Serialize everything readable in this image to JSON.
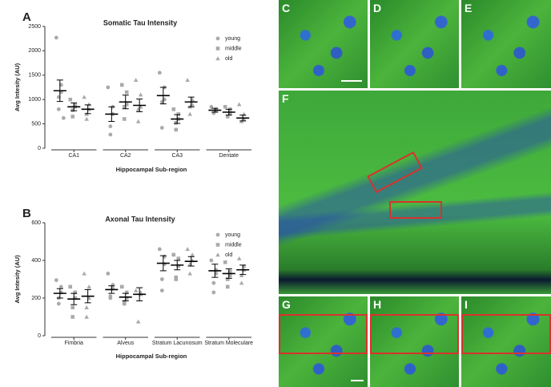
{
  "chart_data": [
    {
      "type": "dotplot",
      "panel_label": "A",
      "title": "Somatic Tau Intensity",
      "ylabel": "Avg Intesity (AU)",
      "xlabel": "Hippocampal Sub-region",
      "categories": [
        "CA1",
        "CA2",
        "CA3",
        "Dentate"
      ],
      "ylim": [
        0,
        2500
      ],
      "yticks": [
        0,
        500,
        1000,
        1500,
        2000,
        2500
      ],
      "series": [
        {
          "name": "young",
          "color": "#aaaaaa",
          "marker": "circle",
          "points": [
            [
              2270,
              1300,
              1150,
              1050,
              800,
              620
            ],
            [
              1250,
              850,
              700,
              450,
              280
            ],
            [
              1550,
              1250,
              1000,
              950,
              420
            ],
            [
              850,
              800,
              780,
              720
            ]
          ],
          "mean": [
            1180,
            700,
            1080,
            780
          ],
          "sem": [
            220,
            150,
            170,
            40
          ]
        },
        {
          "name": "middle",
          "color": "#aaaaaa",
          "marker": "square",
          "points": [
            [
              1000,
              880,
              850,
              780,
              650
            ],
            [
              1300,
              1150,
              900,
              850,
              600
            ],
            [
              800,
              700,
              600,
              520,
              380
            ],
            [
              850,
              800,
              720,
              650
            ]
          ],
          "mean": [
            850,
            950,
            600,
            740
          ],
          "sem": [
            80,
            140,
            90,
            60
          ]
        },
        {
          "name": "old",
          "color": "#aaaaaa",
          "marker": "triangle",
          "points": [
            [
              1050,
              900,
              800,
              700,
              600
            ],
            [
              1400,
              1100,
              850,
              800,
              550
            ],
            [
              1400,
              1000,
              900,
              850,
              700
            ],
            [
              900,
              700,
              600,
              550
            ]
          ],
          "mean": [
            800,
            880,
            950,
            620
          ],
          "sem": [
            90,
            130,
            100,
            60
          ]
        }
      ]
    },
    {
      "type": "dotplot",
      "panel_label": "B",
      "title": "Axonal Tau Intensity",
      "ylabel": "Avg Intesity (AU)",
      "xlabel": "Hippocampal Sub-region",
      "categories": [
        "Fimbria",
        "Alveus",
        "Stratum Lacunosum",
        "Stratum Moleculare"
      ],
      "ylim": [
        0,
        600
      ],
      "yticks": [
        0,
        200,
        400,
        600
      ],
      "series": [
        {
          "name": "young",
          "color": "#aaaaaa",
          "marker": "circle",
          "points": [
            [
              295,
              260,
              230,
              200,
              170
            ],
            [
              330,
              270,
              250,
              210,
              200
            ],
            [
              460,
              420,
              380,
              300,
              240
            ],
            [
              400,
              350,
              330,
              280,
              230
            ]
          ],
          "mean": [
            225,
            245,
            385,
            345
          ],
          "sem": [
            25,
            20,
            40,
            35
          ]
        },
        {
          "name": "middle",
          "color": "#aaaaaa",
          "marker": "square",
          "points": [
            [
              260,
              230,
              200,
              150,
              100
            ],
            [
              260,
              230,
              200,
              180,
              170
            ],
            [
              430,
              410,
              370,
              310,
              300
            ],
            [
              390,
              340,
              320,
              300,
              260
            ]
          ],
          "mean": [
            195,
            205,
            375,
            330
          ],
          "sem": [
            30,
            20,
            25,
            25
          ]
        },
        {
          "name": "old",
          "color": "#aaaaaa",
          "marker": "triangle",
          "points": [
            [
              330,
              260,
              200,
              150,
              100
            ],
            [
              240,
              230,
              220,
              75
            ],
            [
              460,
              430,
              400,
              380,
              330
            ],
            [
              410,
              370,
              350,
              320,
              280
            ]
          ],
          "mean": [
            210,
            220,
            395,
            350
          ],
          "sem": [
            35,
            35,
            25,
            25
          ]
        }
      ]
    }
  ],
  "images": [
    {
      "label": "C"
    },
    {
      "label": "D"
    },
    {
      "label": "E"
    },
    {
      "label": "F"
    },
    {
      "label": "G"
    },
    {
      "label": "H"
    },
    {
      "label": "I"
    }
  ]
}
